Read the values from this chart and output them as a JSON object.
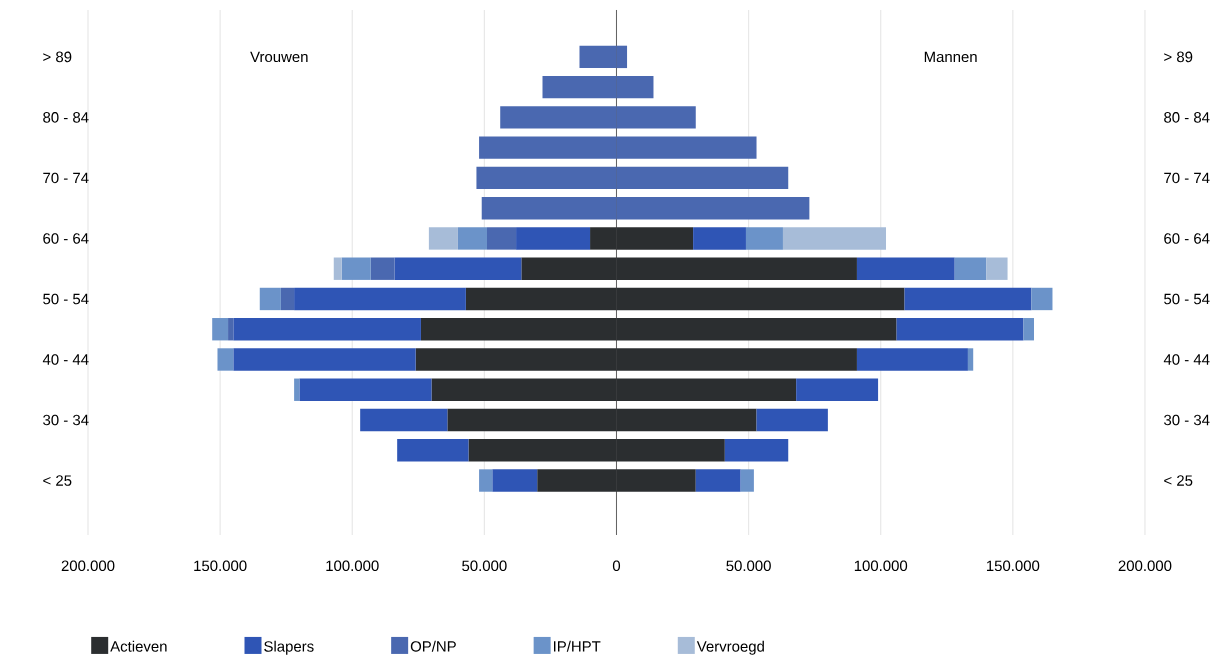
{
  "chart_data": {
    "type": "bar",
    "orientation": "horizontal",
    "stacked": true,
    "categories": [
      "> 89",
      null,
      "80 - 84",
      null,
      "70 - 74",
      null,
      "60 - 64",
      null,
      "50 - 54",
      null,
      "40 - 44",
      null,
      "30 - 34",
      null,
      "< 25"
    ],
    "series": [
      {
        "name": "Actieven",
        "color": "#2b2e30",
        "values": [
          null,
          null,
          null,
          null,
          null,
          null,
          -10000,
          -36000,
          -57000,
          -74000,
          -76000,
          -70000,
          -64000,
          -56000,
          -30000
        ]
      },
      {
        "name": "Slapers",
        "color": "#2f55b5",
        "values": [
          null,
          null,
          null,
          null,
          null,
          null,
          -28000,
          -48000,
          -65000,
          -71000,
          -69000,
          -50000,
          -33000,
          -27000,
          -17000
        ]
      },
      {
        "name": "OP/NP",
        "color": "#4a68b0",
        "values": [
          -14000,
          -28000,
          -44000,
          -52000,
          -53000,
          -51000,
          -11000,
          -9000,
          -5000,
          -2000,
          null,
          null,
          null,
          null,
          null
        ]
      },
      {
        "name": "IP/HPT",
        "color": "#6b93c9",
        "values": [
          null,
          null,
          null,
          null,
          null,
          null,
          -11000,
          -11000,
          -8000,
          -6000,
          -6000,
          -2000,
          null,
          null,
          -5000
        ]
      },
      {
        "name": "Vervroegd",
        "color": "#a7bcd8",
        "values": [
          null,
          null,
          null,
          null,
          null,
          null,
          -11000,
          -3000,
          null,
          null,
          null,
          null,
          null,
          null,
          null
        ]
      },
      {
        "color": "#2b2e30",
        "values": [
          null,
          null,
          null,
          null,
          null,
          null,
          29000,
          91000,
          109000,
          106000,
          91000,
          68000,
          53000,
          41000,
          30000
        ]
      },
      {
        "color": "#2f55b5",
        "values": [
          null,
          null,
          null,
          null,
          null,
          null,
          20000,
          37000,
          48000,
          48000,
          42000,
          31000,
          27000,
          24000,
          17000
        ]
      },
      {
        "color": "#4a68b0",
        "values": [
          4000,
          14000,
          30000,
          53000,
          65000,
          73000,
          null,
          null,
          null,
          null,
          null,
          null,
          null,
          null,
          null
        ]
      },
      {
        "color": "#6b93c9",
        "values": [
          null,
          null,
          null,
          null,
          null,
          null,
          14000,
          12000,
          8000,
          4000,
          2000,
          null,
          null,
          null,
          5000
        ]
      },
      {
        "color": "#a7bcd8",
        "values": [
          null,
          null,
          null,
          null,
          null,
          null,
          39000,
          8000,
          null,
          null,
          null,
          null,
          null,
          null,
          null
        ]
      }
    ],
    "xlim": [
      -200000,
      200000
    ],
    "xticks": [
      {
        "value": -200000,
        "label": "200.000"
      },
      {
        "value": -150000,
        "label": "150.000"
      },
      {
        "value": -100000,
        "label": "100.000"
      },
      {
        "value": -50000,
        "label": "50.000"
      },
      0,
      {
        "value": 50000,
        "label": "50.000"
      },
      {
        "value": 100000,
        "label": "100.000"
      },
      {
        "value": 150000,
        "label": "150.000"
      },
      {
        "value": 200000,
        "label": "200.000"
      }
    ],
    "annotations": [
      "Vrouwen",
      "Mannen"
    ],
    "grid": "x",
    "legend": "bottom"
  }
}
